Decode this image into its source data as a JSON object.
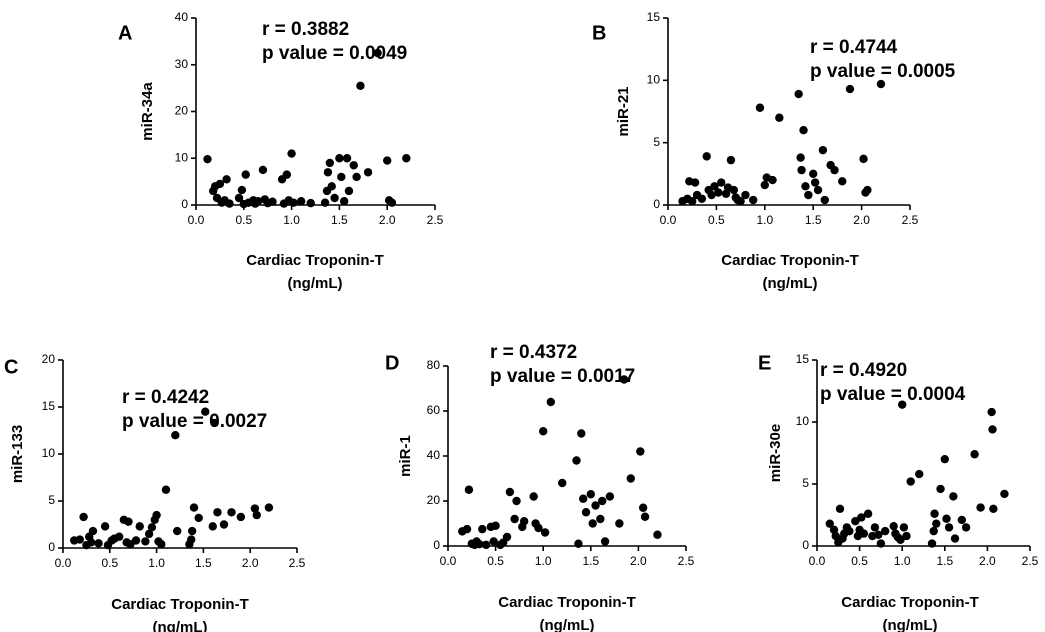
{
  "chart_data": [
    {
      "type": "scatter",
      "panel": "A",
      "stats": {
        "r": "r = 0.3882",
        "p": "p value = 0.0049"
      },
      "xlabel": [
        "Cardiac Troponin-T",
        "(ng/mL)"
      ],
      "ylabel": "miR-34a",
      "xlim": [
        0,
        2.5
      ],
      "ylim": [
        0,
        40
      ],
      "xticks": [
        {
          "v": 0,
          "label": "0.0"
        },
        {
          "v": 0.5,
          "label": "0.5"
        },
        {
          "v": 1,
          "label": "1.0"
        },
        {
          "v": 1.5,
          "label": "1.5"
        },
        {
          "v": 2,
          "label": "2.0"
        },
        {
          "v": 2.5,
          "label": "2.5"
        }
      ],
      "yticks": [
        {
          "v": 0,
          "label": "0"
        },
        {
          "v": 10,
          "label": "10"
        },
        {
          "v": 20,
          "label": "20"
        },
        {
          "v": 30,
          "label": "30"
        },
        {
          "v": 40,
          "label": "40"
        }
      ],
      "points": [
        [
          0.12,
          9.8
        ],
        [
          0.18,
          3.0
        ],
        [
          0.2,
          4.0
        ],
        [
          0.22,
          1.5
        ],
        [
          0.25,
          4.5
        ],
        [
          0.27,
          0.5
        ],
        [
          0.3,
          1.0
        ],
        [
          0.32,
          5.5
        ],
        [
          0.35,
          0.3
        ],
        [
          0.45,
          1.5
        ],
        [
          0.48,
          3.2
        ],
        [
          0.5,
          0.2
        ],
        [
          0.52,
          6.5
        ],
        [
          0.55,
          0.5
        ],
        [
          0.6,
          1.0
        ],
        [
          0.62,
          0.3
        ],
        [
          0.65,
          0.8
        ],
        [
          0.7,
          7.5
        ],
        [
          0.72,
          1.2
        ],
        [
          0.75,
          0.4
        ],
        [
          0.8,
          0.7
        ],
        [
          0.9,
          5.5
        ],
        [
          0.92,
          0.3
        ],
        [
          0.95,
          6.5
        ],
        [
          0.97,
          1.0
        ],
        [
          1.0,
          11.0
        ],
        [
          1.02,
          0.5
        ],
        [
          1.1,
          0.8
        ],
        [
          1.2,
          0.4
        ],
        [
          1.35,
          0.5
        ],
        [
          1.37,
          3.0
        ],
        [
          1.38,
          7.0
        ],
        [
          1.4,
          9.0
        ],
        [
          1.42,
          4.0
        ],
        [
          1.45,
          1.5
        ],
        [
          1.5,
          10.0
        ],
        [
          1.52,
          6.0
        ],
        [
          1.55,
          0.8
        ],
        [
          1.58,
          10.0
        ],
        [
          1.6,
          3.0
        ],
        [
          1.65,
          8.5
        ],
        [
          1.68,
          6.0
        ],
        [
          1.72,
          25.5
        ],
        [
          1.8,
          7.0
        ],
        [
          1.9,
          32.5
        ],
        [
          2.0,
          9.5
        ],
        [
          2.02,
          1.0
        ],
        [
          2.05,
          0.5
        ],
        [
          2.2,
          10.0
        ]
      ]
    },
    {
      "type": "scatter",
      "panel": "B",
      "stats": {
        "r": "r = 0.4744",
        "p": "p value = 0.0005"
      },
      "xlabel": [
        "Cardiac Troponin-T",
        "(ng/mL)"
      ],
      "ylabel": "miR-21",
      "xlim": [
        0,
        2.5
      ],
      "ylim": [
        0,
        15
      ],
      "xticks": [
        {
          "v": 0,
          "label": "0.0"
        },
        {
          "v": 0.5,
          "label": "0.5"
        },
        {
          "v": 1,
          "label": "1.0"
        },
        {
          "v": 1.5,
          "label": "1.5"
        },
        {
          "v": 2,
          "label": "2.0"
        },
        {
          "v": 2.5,
          "label": "2.5"
        }
      ],
      "yticks": [
        {
          "v": 0,
          "label": "0"
        },
        {
          "v": 5,
          "label": "5"
        },
        {
          "v": 10,
          "label": "10"
        },
        {
          "v": 15,
          "label": "15"
        }
      ],
      "points": [
        [
          0.15,
          0.3
        ],
        [
          0.2,
          0.5
        ],
        [
          0.22,
          1.9
        ],
        [
          0.25,
          0.3
        ],
        [
          0.28,
          1.8
        ],
        [
          0.3,
          0.8
        ],
        [
          0.35,
          0.5
        ],
        [
          0.4,
          3.9
        ],
        [
          0.42,
          1.2
        ],
        [
          0.45,
          0.8
        ],
        [
          0.48,
          1.5
        ],
        [
          0.52,
          1.0
        ],
        [
          0.55,
          1.8
        ],
        [
          0.6,
          0.9
        ],
        [
          0.62,
          1.4
        ],
        [
          0.65,
          3.6
        ],
        [
          0.68,
          1.2
        ],
        [
          0.7,
          0.6
        ],
        [
          0.72,
          0.4
        ],
        [
          0.75,
          0.3
        ],
        [
          0.8,
          0.8
        ],
        [
          0.88,
          0.4
        ],
        [
          0.95,
          7.8
        ],
        [
          1.0,
          1.6
        ],
        [
          1.02,
          2.2
        ],
        [
          1.08,
          2.0
        ],
        [
          1.15,
          7.0
        ],
        [
          1.35,
          8.9
        ],
        [
          1.37,
          3.8
        ],
        [
          1.38,
          2.8
        ],
        [
          1.4,
          6.0
        ],
        [
          1.42,
          1.5
        ],
        [
          1.45,
          0.8
        ],
        [
          1.5,
          2.5
        ],
        [
          1.52,
          1.8
        ],
        [
          1.55,
          1.2
        ],
        [
          1.6,
          4.4
        ],
        [
          1.62,
          0.4
        ],
        [
          1.68,
          3.2
        ],
        [
          1.72,
          2.8
        ],
        [
          1.8,
          1.9
        ],
        [
          1.88,
          9.3
        ],
        [
          2.02,
          3.7
        ],
        [
          2.04,
          1.0
        ],
        [
          2.06,
          1.2
        ],
        [
          2.2,
          9.7
        ]
      ]
    },
    {
      "type": "scatter",
      "panel": "C",
      "stats": {
        "r": "r = 0.4242",
        "p": "p value = 0.0027"
      },
      "xlabel": [
        "Cardiac Troponin-T",
        "(ng/mL)"
      ],
      "ylabel": "miR-133",
      "xlim": [
        0,
        2.5
      ],
      "ylim": [
        0,
        20
      ],
      "xticks": [
        {
          "v": 0,
          "label": "0.0"
        },
        {
          "v": 0.5,
          "label": "0.5"
        },
        {
          "v": 1,
          "label": "1.0"
        },
        {
          "v": 1.5,
          "label": "1.5"
        },
        {
          "v": 2,
          "label": "2.0"
        },
        {
          "v": 2.5,
          "label": "2.5"
        }
      ],
      "yticks": [
        {
          "v": 0,
          "label": "0"
        },
        {
          "v": 5,
          "label": "5"
        },
        {
          "v": 10,
          "label": "10"
        },
        {
          "v": 15,
          "label": "15"
        },
        {
          "v": 20,
          "label": "20"
        }
      ],
      "points": [
        [
          0.12,
          0.8
        ],
        [
          0.18,
          0.9
        ],
        [
          0.22,
          3.3
        ],
        [
          0.25,
          0.3
        ],
        [
          0.28,
          1.2
        ],
        [
          0.3,
          0.6
        ],
        [
          0.32,
          1.8
        ],
        [
          0.38,
          0.5
        ],
        [
          0.45,
          2.3
        ],
        [
          0.48,
          0.3
        ],
        [
          0.52,
          0.8
        ],
        [
          0.55,
          1.0
        ],
        [
          0.6,
          1.2
        ],
        [
          0.65,
          3.0
        ],
        [
          0.68,
          0.6
        ],
        [
          0.7,
          2.8
        ],
        [
          0.72,
          0.4
        ],
        [
          0.78,
          0.8
        ],
        [
          0.82,
          2.3
        ],
        [
          0.88,
          0.7
        ],
        [
          0.92,
          1.5
        ],
        [
          0.95,
          2.2
        ],
        [
          0.98,
          3.0
        ],
        [
          1.0,
          3.5
        ],
        [
          1.02,
          0.7
        ],
        [
          1.05,
          0.4
        ],
        [
          1.1,
          6.2
        ],
        [
          1.2,
          12.0
        ],
        [
          1.22,
          1.8
        ],
        [
          1.35,
          0.4
        ],
        [
          1.37,
          0.9
        ],
        [
          1.38,
          1.8
        ],
        [
          1.4,
          4.3
        ],
        [
          1.45,
          3.2
        ],
        [
          1.52,
          14.5
        ],
        [
          1.6,
          2.3
        ],
        [
          1.62,
          13.3
        ],
        [
          1.65,
          3.8
        ],
        [
          1.72,
          2.5
        ],
        [
          1.8,
          3.8
        ],
        [
          1.9,
          3.3
        ],
        [
          2.05,
          4.2
        ],
        [
          2.07,
          3.5
        ],
        [
          2.2,
          4.3
        ]
      ]
    },
    {
      "type": "scatter",
      "panel": "D",
      "stats": {
        "r": "r = 0.4372",
        "p": "p value = 0.0017"
      },
      "xlabel": [
        "Cardiac Troponin-T",
        "(ng/mL)"
      ],
      "ylabel": "miR-1",
      "xlim": [
        0,
        2.5
      ],
      "ylim": [
        0,
        80
      ],
      "xticks": [
        {
          "v": 0,
          "label": "0.0"
        },
        {
          "v": 0.5,
          "label": "0.5"
        },
        {
          "v": 1,
          "label": "1.0"
        },
        {
          "v": 1.5,
          "label": "1.5"
        },
        {
          "v": 2,
          "label": "2.0"
        },
        {
          "v": 2.5,
          "label": "2.5"
        }
      ],
      "yticks": [
        {
          "v": 0,
          "label": "0"
        },
        {
          "v": 20,
          "label": "20"
        },
        {
          "v": 40,
          "label": "40"
        },
        {
          "v": 60,
          "label": "60"
        },
        {
          "v": 80,
          "label": "80"
        }
      ],
      "points": [
        [
          0.15,
          6.5
        ],
        [
          0.2,
          7.5
        ],
        [
          0.22,
          25.0
        ],
        [
          0.25,
          1.0
        ],
        [
          0.28,
          0.5
        ],
        [
          0.3,
          2.0
        ],
        [
          0.33,
          0.8
        ],
        [
          0.36,
          7.5
        ],
        [
          0.4,
          0.5
        ],
        [
          0.45,
          8.5
        ],
        [
          0.48,
          2.0
        ],
        [
          0.5,
          9.0
        ],
        [
          0.55,
          0.5
        ],
        [
          0.58,
          1.5
        ],
        [
          0.62,
          4.0
        ],
        [
          0.65,
          24.0
        ],
        [
          0.7,
          12.0
        ],
        [
          0.72,
          20.0
        ],
        [
          0.78,
          8.5
        ],
        [
          0.8,
          11.0
        ],
        [
          0.9,
          22.0
        ],
        [
          0.92,
          10.0
        ],
        [
          0.95,
          8.0
        ],
        [
          1.0,
          51.0
        ],
        [
          1.02,
          6.0
        ],
        [
          1.08,
          64.0
        ],
        [
          1.2,
          28.0
        ],
        [
          1.35,
          38.0
        ],
        [
          1.37,
          1.0
        ],
        [
          1.4,
          50.0
        ],
        [
          1.42,
          21.0
        ],
        [
          1.45,
          15.0
        ],
        [
          1.5,
          23.0
        ],
        [
          1.52,
          10.0
        ],
        [
          1.55,
          18.0
        ],
        [
          1.6,
          12.0
        ],
        [
          1.62,
          20.0
        ],
        [
          1.65,
          2.0
        ],
        [
          1.7,
          22.0
        ],
        [
          1.8,
          10.0
        ],
        [
          1.85,
          74.0
        ],
        [
          1.92,
          30.0
        ],
        [
          2.02,
          42.0
        ],
        [
          2.05,
          17.0
        ],
        [
          2.07,
          13.0
        ],
        [
          2.2,
          5.0
        ]
      ]
    },
    {
      "type": "scatter",
      "panel": "E",
      "stats": {
        "r": "r = 0.4920",
        "p": "p value = 0.0004"
      },
      "xlabel": [
        "Cardiac Troponin-T",
        "(ng/mL)"
      ],
      "ylabel": "miR-30e",
      "xlim": [
        0,
        2.5
      ],
      "ylim": [
        0,
        15
      ],
      "xticks": [
        {
          "v": 0,
          "label": "0.0"
        },
        {
          "v": 0.5,
          "label": "0.5"
        },
        {
          "v": 1,
          "label": "1.0"
        },
        {
          "v": 1.5,
          "label": "1.5"
        },
        {
          "v": 2,
          "label": "2.0"
        },
        {
          "v": 2.5,
          "label": "2.5"
        }
      ],
      "yticks": [
        {
          "v": 0,
          "label": "0"
        },
        {
          "v": 5,
          "label": "5"
        },
        {
          "v": 10,
          "label": "10"
        },
        {
          "v": 15,
          "label": "15"
        }
      ],
      "points": [
        [
          0.15,
          1.8
        ],
        [
          0.2,
          1.3
        ],
        [
          0.22,
          0.8
        ],
        [
          0.25,
          0.3
        ],
        [
          0.27,
          3.0
        ],
        [
          0.3,
          0.6
        ],
        [
          0.32,
          1.0
        ],
        [
          0.35,
          1.5
        ],
        [
          0.38,
          1.2
        ],
        [
          0.45,
          2.0
        ],
        [
          0.48,
          0.8
        ],
        [
          0.5,
          1.3
        ],
        [
          0.52,
          2.3
        ],
        [
          0.55,
          1.0
        ],
        [
          0.6,
          2.6
        ],
        [
          0.65,
          0.8
        ],
        [
          0.68,
          1.5
        ],
        [
          0.72,
          0.9
        ],
        [
          0.75,
          0.2
        ],
        [
          0.8,
          1.2
        ],
        [
          0.9,
          1.6
        ],
        [
          0.92,
          1.0
        ],
        [
          0.95,
          0.7
        ],
        [
          0.98,
          0.5
        ],
        [
          1.0,
          11.4
        ],
        [
          1.02,
          1.5
        ],
        [
          1.05,
          0.8
        ],
        [
          1.1,
          5.2
        ],
        [
          1.2,
          5.8
        ],
        [
          1.35,
          0.2
        ],
        [
          1.37,
          1.2
        ],
        [
          1.38,
          2.6
        ],
        [
          1.4,
          1.8
        ],
        [
          1.45,
          4.6
        ],
        [
          1.5,
          7.0
        ],
        [
          1.52,
          2.2
        ],
        [
          1.55,
          1.5
        ],
        [
          1.6,
          4.0
        ],
        [
          1.62,
          0.6
        ],
        [
          1.7,
          2.1
        ],
        [
          1.75,
          1.5
        ],
        [
          1.85,
          7.4
        ],
        [
          1.92,
          3.1
        ],
        [
          2.05,
          10.8
        ],
        [
          2.06,
          9.4
        ],
        [
          2.07,
          3.0
        ],
        [
          2.2,
          4.2
        ]
      ]
    }
  ]
}
